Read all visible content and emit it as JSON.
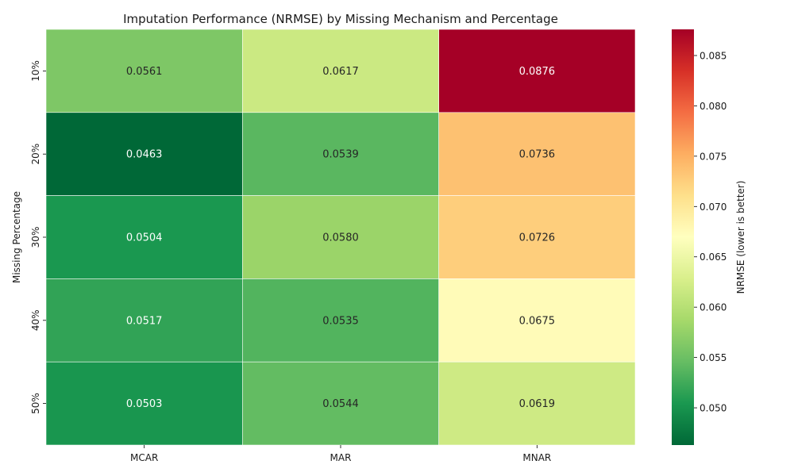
{
  "chart_data": {
    "type": "heatmap",
    "title": "Imputation Performance (NRMSE) by Missing Mechanism and Percentage",
    "xlabel": "",
    "ylabel": "Missing Percentage",
    "x_categories": [
      "MCAR",
      "MAR",
      "MNAR"
    ],
    "y_categories": [
      "10%",
      "20%",
      "30%",
      "40%",
      "50%"
    ],
    "values": [
      [
        0.0561,
        0.0617,
        0.0876
      ],
      [
        0.0463,
        0.0539,
        0.0736
      ],
      [
        0.0504,
        0.058,
        0.0726
      ],
      [
        0.0517,
        0.0535,
        0.0675
      ],
      [
        0.0503,
        0.0544,
        0.0619
      ]
    ],
    "value_labels": [
      [
        "0.0561",
        "0.0617",
        "0.0876"
      ],
      [
        "0.0463",
        "0.0539",
        "0.0736"
      ],
      [
        "0.0504",
        "0.0580",
        "0.0726"
      ],
      [
        "0.0517",
        "0.0535",
        "0.0675"
      ],
      [
        "0.0503",
        "0.0544",
        "0.0619"
      ]
    ],
    "colormap": "RdYlGn_r",
    "colorbar": {
      "label": "NRMSE (lower is better)",
      "range": [
        0.0463,
        0.0876
      ],
      "ticks": [
        0.05,
        0.055,
        0.06,
        0.065,
        0.07,
        0.075,
        0.08,
        0.085
      ],
      "tick_labels": [
        "0.050",
        "0.055",
        "0.060",
        "0.065",
        "0.070",
        "0.075",
        "0.080",
        "0.085"
      ]
    },
    "colors": {
      "stops": [
        "#006837",
        "#1a9850",
        "#66bd63",
        "#a6d96a",
        "#d9ef8b",
        "#ffffbf",
        "#fee08b",
        "#fdae61",
        "#f46d43",
        "#d73027",
        "#a50026"
      ],
      "light_text": "#ffffff",
      "dark_text": "#262626",
      "cell_border": "#ffffff"
    }
  }
}
